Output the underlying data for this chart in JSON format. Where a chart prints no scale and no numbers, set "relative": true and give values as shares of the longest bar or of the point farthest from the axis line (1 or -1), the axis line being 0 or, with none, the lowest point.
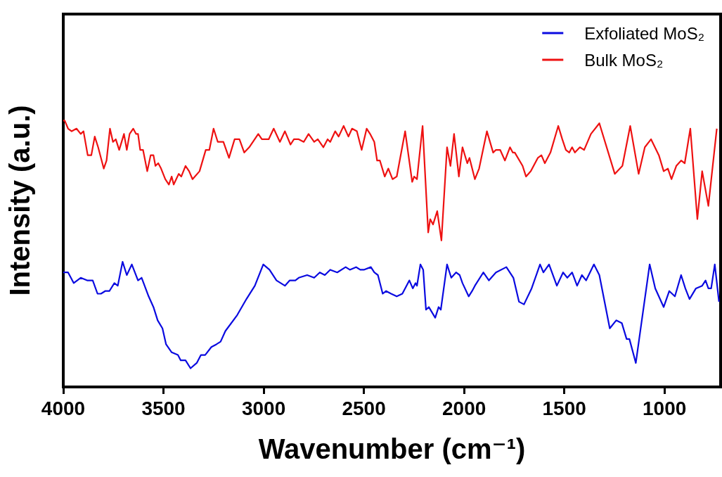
{
  "chart_data": {
    "type": "line",
    "relative": true,
    "xlabel": "Wavenumber (cm⁻¹)",
    "ylabel": "Intensity (a.u.)",
    "xlim": [
      4000,
      720
    ],
    "xticks": [
      4000,
      3500,
      3000,
      2500,
      2000,
      1500,
      1000
    ],
    "tick_labels": "x",
    "grid": false,
    "legend": "top right",
    "marker": "none",
    "line_style": "solid",
    "series": [
      {
        "name": "Exfoliated MoS₂",
        "color": "#0a0ae0",
        "x": [
          4000,
          3976,
          3948,
          3913,
          3881,
          3853,
          3829,
          3812,
          3791,
          3770,
          3745,
          3728,
          3704,
          3683,
          3658,
          3627,
          3609,
          3574,
          3550,
          3529,
          3505,
          3487,
          3459,
          3428,
          3414,
          3390,
          3365,
          3334,
          3313,
          3292,
          3261,
          3236,
          3215,
          3191,
          3132,
          3086,
          3044,
          3002,
          2971,
          2936,
          2894,
          2870,
          2842,
          2825,
          2783,
          2748,
          2720,
          2695,
          2668,
          2633,
          2591,
          2570,
          2539,
          2518,
          2500,
          2465,
          2448,
          2430,
          2406,
          2389,
          2364,
          2336,
          2308,
          2273,
          2256,
          2242,
          2235,
          2218,
          2204,
          2190,
          2176,
          2144,
          2127,
          2116,
          2085,
          2064,
          2040,
          2022,
          2008,
          1977,
          1960,
          1946,
          1904,
          1876,
          1841,
          1789,
          1754,
          1726,
          1701,
          1663,
          1621,
          1604,
          1576,
          1537,
          1506,
          1485,
          1461,
          1436,
          1412,
          1391,
          1352,
          1325,
          1273,
          1241,
          1213,
          1189,
          1175,
          1143,
          1074,
          1046,
          1004,
          976,
          948,
          917,
          896,
          875,
          843,
          812,
          795,
          781,
          767,
          749,
          728
        ],
        "values": [
          0.43,
          0.43,
          0.39,
          0.41,
          0.4,
          0.4,
          0.35,
          0.35,
          0.36,
          0.36,
          0.39,
          0.38,
          0.47,
          0.42,
          0.46,
          0.4,
          0.41,
          0.34,
          0.3,
          0.25,
          0.22,
          0.16,
          0.13,
          0.12,
          0.1,
          0.1,
          0.07,
          0.09,
          0.12,
          0.12,
          0.15,
          0.16,
          0.17,
          0.21,
          0.27,
          0.33,
          0.38,
          0.46,
          0.44,
          0.4,
          0.38,
          0.4,
          0.4,
          0.41,
          0.42,
          0.41,
          0.43,
          0.42,
          0.44,
          0.43,
          0.45,
          0.44,
          0.45,
          0.44,
          0.44,
          0.45,
          0.43,
          0.42,
          0.35,
          0.36,
          0.35,
          0.34,
          0.35,
          0.4,
          0.37,
          0.39,
          0.38,
          0.46,
          0.44,
          0.29,
          0.3,
          0.26,
          0.3,
          0.29,
          0.46,
          0.41,
          0.43,
          0.42,
          0.39,
          0.34,
          0.36,
          0.38,
          0.43,
          0.4,
          0.43,
          0.45,
          0.41,
          0.32,
          0.31,
          0.37,
          0.46,
          0.43,
          0.46,
          0.38,
          0.43,
          0.41,
          0.43,
          0.38,
          0.42,
          0.4,
          0.46,
          0.42,
          0.22,
          0.25,
          0.24,
          0.18,
          0.18,
          0.09,
          0.46,
          0.37,
          0.3,
          0.36,
          0.34,
          0.42,
          0.37,
          0.33,
          0.37,
          0.38,
          0.4,
          0.37,
          0.37,
          0.46,
          0.32
        ]
      },
      {
        "name": "Bulk MoS₂",
        "color": "#ee1111",
        "x": [
          4000,
          3993,
          3976,
          3958,
          3934,
          3913,
          3899,
          3878,
          3860,
          3843,
          3826,
          3798,
          3784,
          3767,
          3752,
          3738,
          3721,
          3697,
          3683,
          3669,
          3651,
          3637,
          3627,
          3616,
          3602,
          3581,
          3564,
          3550,
          3540,
          3526,
          3512,
          3491,
          3473,
          3459,
          3449,
          3424,
          3411,
          3390,
          3372,
          3355,
          3320,
          3289,
          3271,
          3250,
          3229,
          3201,
          3173,
          3145,
          3121,
          3097,
          3072,
          3027,
          3009,
          2975,
          2950,
          2919,
          2894,
          2866,
          2849,
          2825,
          2800,
          2776,
          2748,
          2730,
          2702,
          2681,
          2668,
          2643,
          2626,
          2601,
          2577,
          2559,
          2535,
          2511,
          2486,
          2469,
          2448,
          2434,
          2420,
          2396,
          2378,
          2357,
          2336,
          2294,
          2259,
          2249,
          2235,
          2207,
          2179,
          2169,
          2155,
          2134,
          2113,
          2085,
          2068,
          2050,
          2026,
          2008,
          1984,
          1973,
          1946,
          1925,
          1886,
          1855,
          1841,
          1820,
          1796,
          1771,
          1757,
          1747,
          1708,
          1691,
          1667,
          1632,
          1614,
          1597,
          1569,
          1530,
          1510,
          1492,
          1475,
          1461,
          1447,
          1422,
          1401,
          1367,
          1325,
          1248,
          1210,
          1171,
          1129,
          1098,
          1067,
          1028,
          1004,
          983,
          965,
          941,
          917,
          899,
          871,
          836,
          812,
          781,
          739
        ],
        "values": [
          1.0,
          1.0,
          0.97,
          0.96,
          0.97,
          0.95,
          0.96,
          0.87,
          0.87,
          0.94,
          0.9,
          0.82,
          0.85,
          0.97,
          0.92,
          0.93,
          0.89,
          0.95,
          0.89,
          0.95,
          0.97,
          0.95,
          0.95,
          0.89,
          0.89,
          0.81,
          0.87,
          0.87,
          0.83,
          0.84,
          0.82,
          0.78,
          0.76,
          0.79,
          0.76,
          0.8,
          0.79,
          0.83,
          0.81,
          0.78,
          0.81,
          0.89,
          0.89,
          0.97,
          0.92,
          0.92,
          0.86,
          0.93,
          0.93,
          0.88,
          0.9,
          0.95,
          0.93,
          0.93,
          0.97,
          0.92,
          0.96,
          0.91,
          0.93,
          0.93,
          0.92,
          0.95,
          0.92,
          0.93,
          0.9,
          0.93,
          0.92,
          0.96,
          0.94,
          0.98,
          0.94,
          0.97,
          0.96,
          0.89,
          0.97,
          0.95,
          0.92,
          0.85,
          0.85,
          0.79,
          0.82,
          0.78,
          0.79,
          0.96,
          0.77,
          0.79,
          0.78,
          0.98,
          0.58,
          0.63,
          0.61,
          0.66,
          0.55,
          0.9,
          0.83,
          0.95,
          0.79,
          0.9,
          0.84,
          0.86,
          0.78,
          0.82,
          0.96,
          0.88,
          0.89,
          0.89,
          0.85,
          0.9,
          0.88,
          0.88,
          0.83,
          0.79,
          0.81,
          0.86,
          0.87,
          0.84,
          0.88,
          0.98,
          0.93,
          0.89,
          0.88,
          0.9,
          0.88,
          0.9,
          0.89,
          0.95,
          0.99,
          0.8,
          0.83,
          0.98,
          0.8,
          0.9,
          0.93,
          0.87,
          0.81,
          0.82,
          0.78,
          0.83,
          0.85,
          0.84,
          0.97,
          0.63,
          0.81,
          0.68,
          0.97
        ]
      }
    ]
  }
}
